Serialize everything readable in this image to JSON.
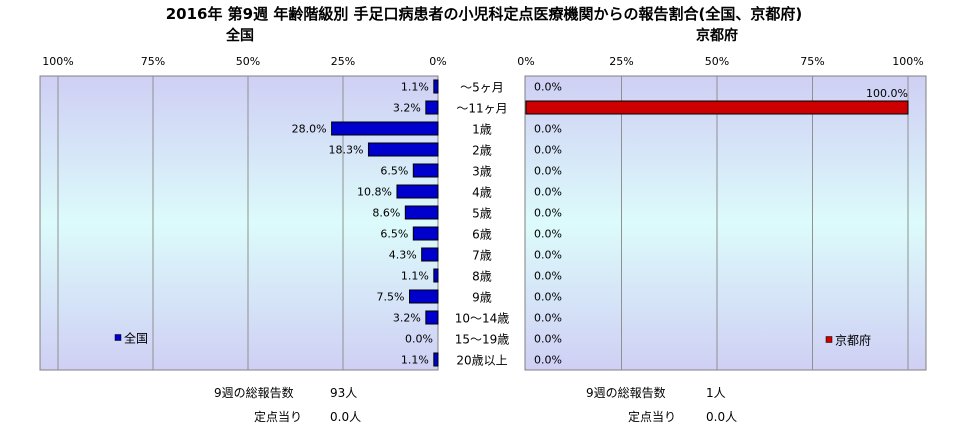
{
  "chart_data": [
    {
      "type": "bar",
      "orientation": "horizontal",
      "direction": "right-to-left",
      "title": "2016年 第9週 年齢階級別 手足口病患者の小児科定点医療機関からの報告割合(全国、京都府)",
      "subtitle": "全国",
      "categories": [
        "～5ヶ月",
        "～11ヶ月",
        "1歳",
        "2歳",
        "3歳",
        "4歳",
        "5歳",
        "6歳",
        "7歳",
        "8歳",
        "9歳",
        "10～14歳",
        "15～19歳",
        "20歳以上"
      ],
      "series": [
        {
          "name": "全国",
          "color": "#0000cc",
          "values": [
            1.1,
            3.2,
            28.0,
            18.3,
            6.5,
            10.8,
            8.6,
            6.5,
            4.3,
            1.1,
            7.5,
            3.2,
            0.0,
            1.1
          ]
        }
      ],
      "value_labels": [
        "1.1%",
        "3.2%",
        "28.0%",
        "18.3%",
        "6.5%",
        "10.8%",
        "8.6%",
        "6.5%",
        "4.3%",
        "1.1%",
        "7.5%",
        "3.2%",
        "0.0%",
        "1.1%"
      ],
      "xlim": [
        0,
        100
      ],
      "x_ticks": [
        "100%",
        "75%",
        "50%",
        "25%",
        "0%"
      ],
      "legend": "bottom-left",
      "grid": true
    },
    {
      "type": "bar",
      "orientation": "horizontal",
      "direction": "left-to-right",
      "subtitle": "京都府",
      "categories": [
        "～5ヶ月",
        "～11ヶ月",
        "1歳",
        "2歳",
        "3歳",
        "4歳",
        "5歳",
        "6歳",
        "7歳",
        "8歳",
        "9歳",
        "10～14歳",
        "15～19歳",
        "20歳以上"
      ],
      "series": [
        {
          "name": "京都府",
          "color": "#cc0000",
          "values": [
            0.0,
            100.0,
            0.0,
            0.0,
            0.0,
            0.0,
            0.0,
            0.0,
            0.0,
            0.0,
            0.0,
            0.0,
            0.0,
            0.0
          ]
        }
      ],
      "value_labels": [
        "0.0%",
        "100.0%",
        "0.0%",
        "0.0%",
        "0.0%",
        "0.0%",
        "0.0%",
        "0.0%",
        "0.0%",
        "0.0%",
        "0.0%",
        "0.0%",
        "0.0%",
        "0.0%"
      ],
      "xlim": [
        0,
        100
      ],
      "x_ticks": [
        "0%",
        "25%",
        "50%",
        "75%",
        "100%"
      ],
      "legend": "bottom-right",
      "grid": true
    }
  ],
  "summary": {
    "national": {
      "reports_label": "9週の総報告数",
      "reports_value": "93人",
      "per_site_label": "定点当り",
      "per_site_value": "0.0人"
    },
    "kyoto": {
      "reports_label": "9週の総報告数",
      "reports_value": "1人",
      "per_site_label": "定点当り",
      "per_site_value": "0.0人"
    }
  }
}
